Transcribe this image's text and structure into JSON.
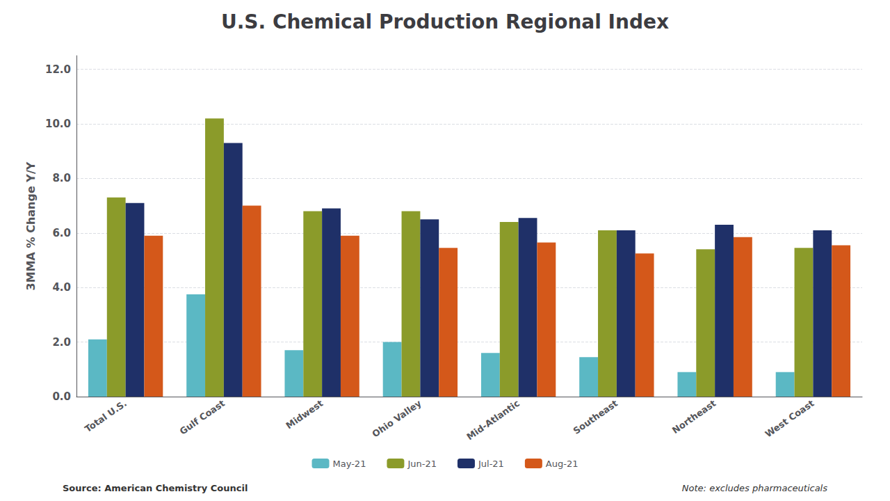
{
  "chart_data": {
    "type": "bar",
    "title": "U.S. Chemical Production Regional Index",
    "ylabel": "3MMA % Change Y/Y",
    "categories": [
      "Total U.S.",
      "Gulf Coast",
      "Midwest",
      "Ohio Valley",
      "Mid-Atlantic",
      "Southeast",
      "Northeast",
      "West Coast"
    ],
    "series": [
      {
        "name": "May-21",
        "color": "#5BB8C4",
        "values": [
          2.1,
          3.75,
          1.7,
          2.0,
          1.6,
          1.45,
          0.9,
          0.9
        ]
      },
      {
        "name": "Jun-21",
        "color": "#8B9B2A",
        "values": [
          7.3,
          10.2,
          6.8,
          6.8,
          6.4,
          6.1,
          5.4,
          5.45
        ]
      },
      {
        "name": "Jul-21",
        "color": "#1F3068",
        "values": [
          7.1,
          9.3,
          6.9,
          6.5,
          6.55,
          6.1,
          6.3,
          6.1
        ]
      },
      {
        "name": "Aug-21",
        "color": "#D4581A",
        "values": [
          5.9,
          7.0,
          5.9,
          5.45,
          5.65,
          5.25,
          5.85,
          5.55
        ]
      }
    ],
    "ylim": [
      0,
      12.5
    ],
    "yticks": [
      {
        "value": 0.0,
        "label": "0.0"
      },
      {
        "value": 2.0,
        "label": "2.0"
      },
      {
        "value": 4.0,
        "label": "4.0"
      },
      {
        "value": 6.0,
        "label": "6.0"
      },
      {
        "value": 8.0,
        "label": "8.0"
      },
      {
        "value": 10.0,
        "label": "10.0"
      },
      {
        "value": 12.0,
        "label": "12.0"
      }
    ],
    "grid": true,
    "legend": "bottom",
    "annotations": [
      "Source: American Chemistry Council",
      "Note: excludes pharmaceuticals"
    ]
  }
}
